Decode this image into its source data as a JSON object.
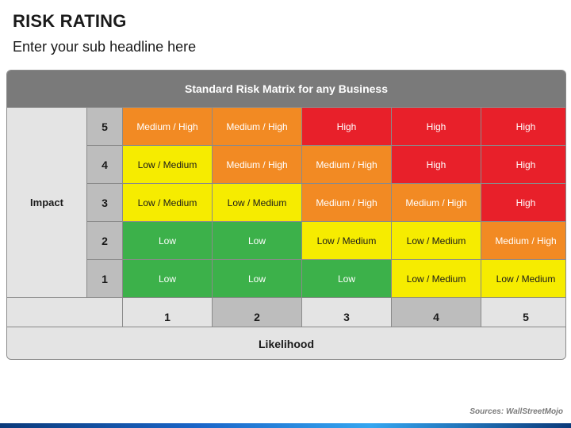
{
  "header": {
    "title": "RISK RATING",
    "subtitle": "Enter your sub headline here"
  },
  "matrix": {
    "title": "Standard Risk Matrix for any Business",
    "y_axis_label": "Impact",
    "x_axis_label": "Likelihood",
    "impact_levels": [
      "5",
      "4",
      "3",
      "2",
      "1"
    ],
    "likelihood_levels": [
      "1",
      "2",
      "3",
      "4",
      "5"
    ],
    "rows": [
      [
        "Medium / High",
        "Medium / High",
        "High",
        "High",
        "High"
      ],
      [
        "Low / Medium",
        "Medium / High",
        "Medium / High",
        "High",
        "High"
      ],
      [
        "Low / Medium",
        "Low / Medium",
        "Medium / High",
        "Medium / High",
        "High"
      ],
      [
        "Low",
        "Low",
        "Low / Medium",
        "Low / Medium",
        "Medium / High"
      ],
      [
        "Low",
        "Low",
        "Low",
        "Low / Medium",
        "Low / Medium"
      ]
    ],
    "level_colors": {
      "High": "#e8202a",
      "Medium / High": "#f28a23",
      "Low / Medium": "#f6ec00",
      "Low": "#3cb14a"
    }
  },
  "footer": {
    "source": "Sources: WallStreetMojo"
  }
}
